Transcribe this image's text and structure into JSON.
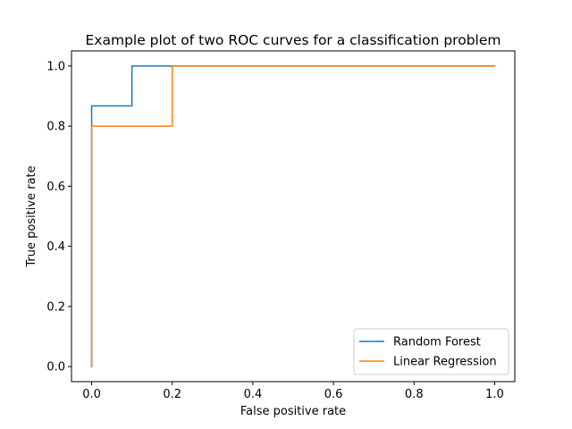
{
  "chart_data": {
    "type": "line",
    "title": "Example plot of two ROC curves for a classification problem",
    "xlabel": "False positive rate",
    "ylabel": "True positive rate",
    "xlim": [
      -0.05,
      1.05
    ],
    "ylim": [
      -0.05,
      1.05
    ],
    "xticks": [
      0.0,
      0.2,
      0.4,
      0.6,
      0.8,
      1.0
    ],
    "yticks": [
      0.0,
      0.2,
      0.4,
      0.6,
      0.8,
      1.0
    ],
    "xtick_labels": [
      "0.0",
      "0.2",
      "0.4",
      "0.6",
      "0.8",
      "1.0"
    ],
    "ytick_labels": [
      "0.0",
      "0.2",
      "0.4",
      "0.6",
      "0.8",
      "1.0"
    ],
    "grid": false,
    "legend_position": "lower-right",
    "series": [
      {
        "name": "Random Forest",
        "color": "#1f77b4",
        "x": [
          0.0,
          0.0,
          0.0,
          0.1,
          0.1,
          0.2,
          1.0
        ],
        "y": [
          0.0,
          0.8,
          0.867,
          0.867,
          1.0,
          1.0,
          1.0
        ]
      },
      {
        "name": "Linear Regression",
        "color": "#ff7f0e",
        "x": [
          0.0,
          0.0,
          0.2,
          0.2,
          1.0
        ],
        "y": [
          0.0,
          0.8,
          0.8,
          1.0,
          1.0
        ]
      }
    ]
  }
}
